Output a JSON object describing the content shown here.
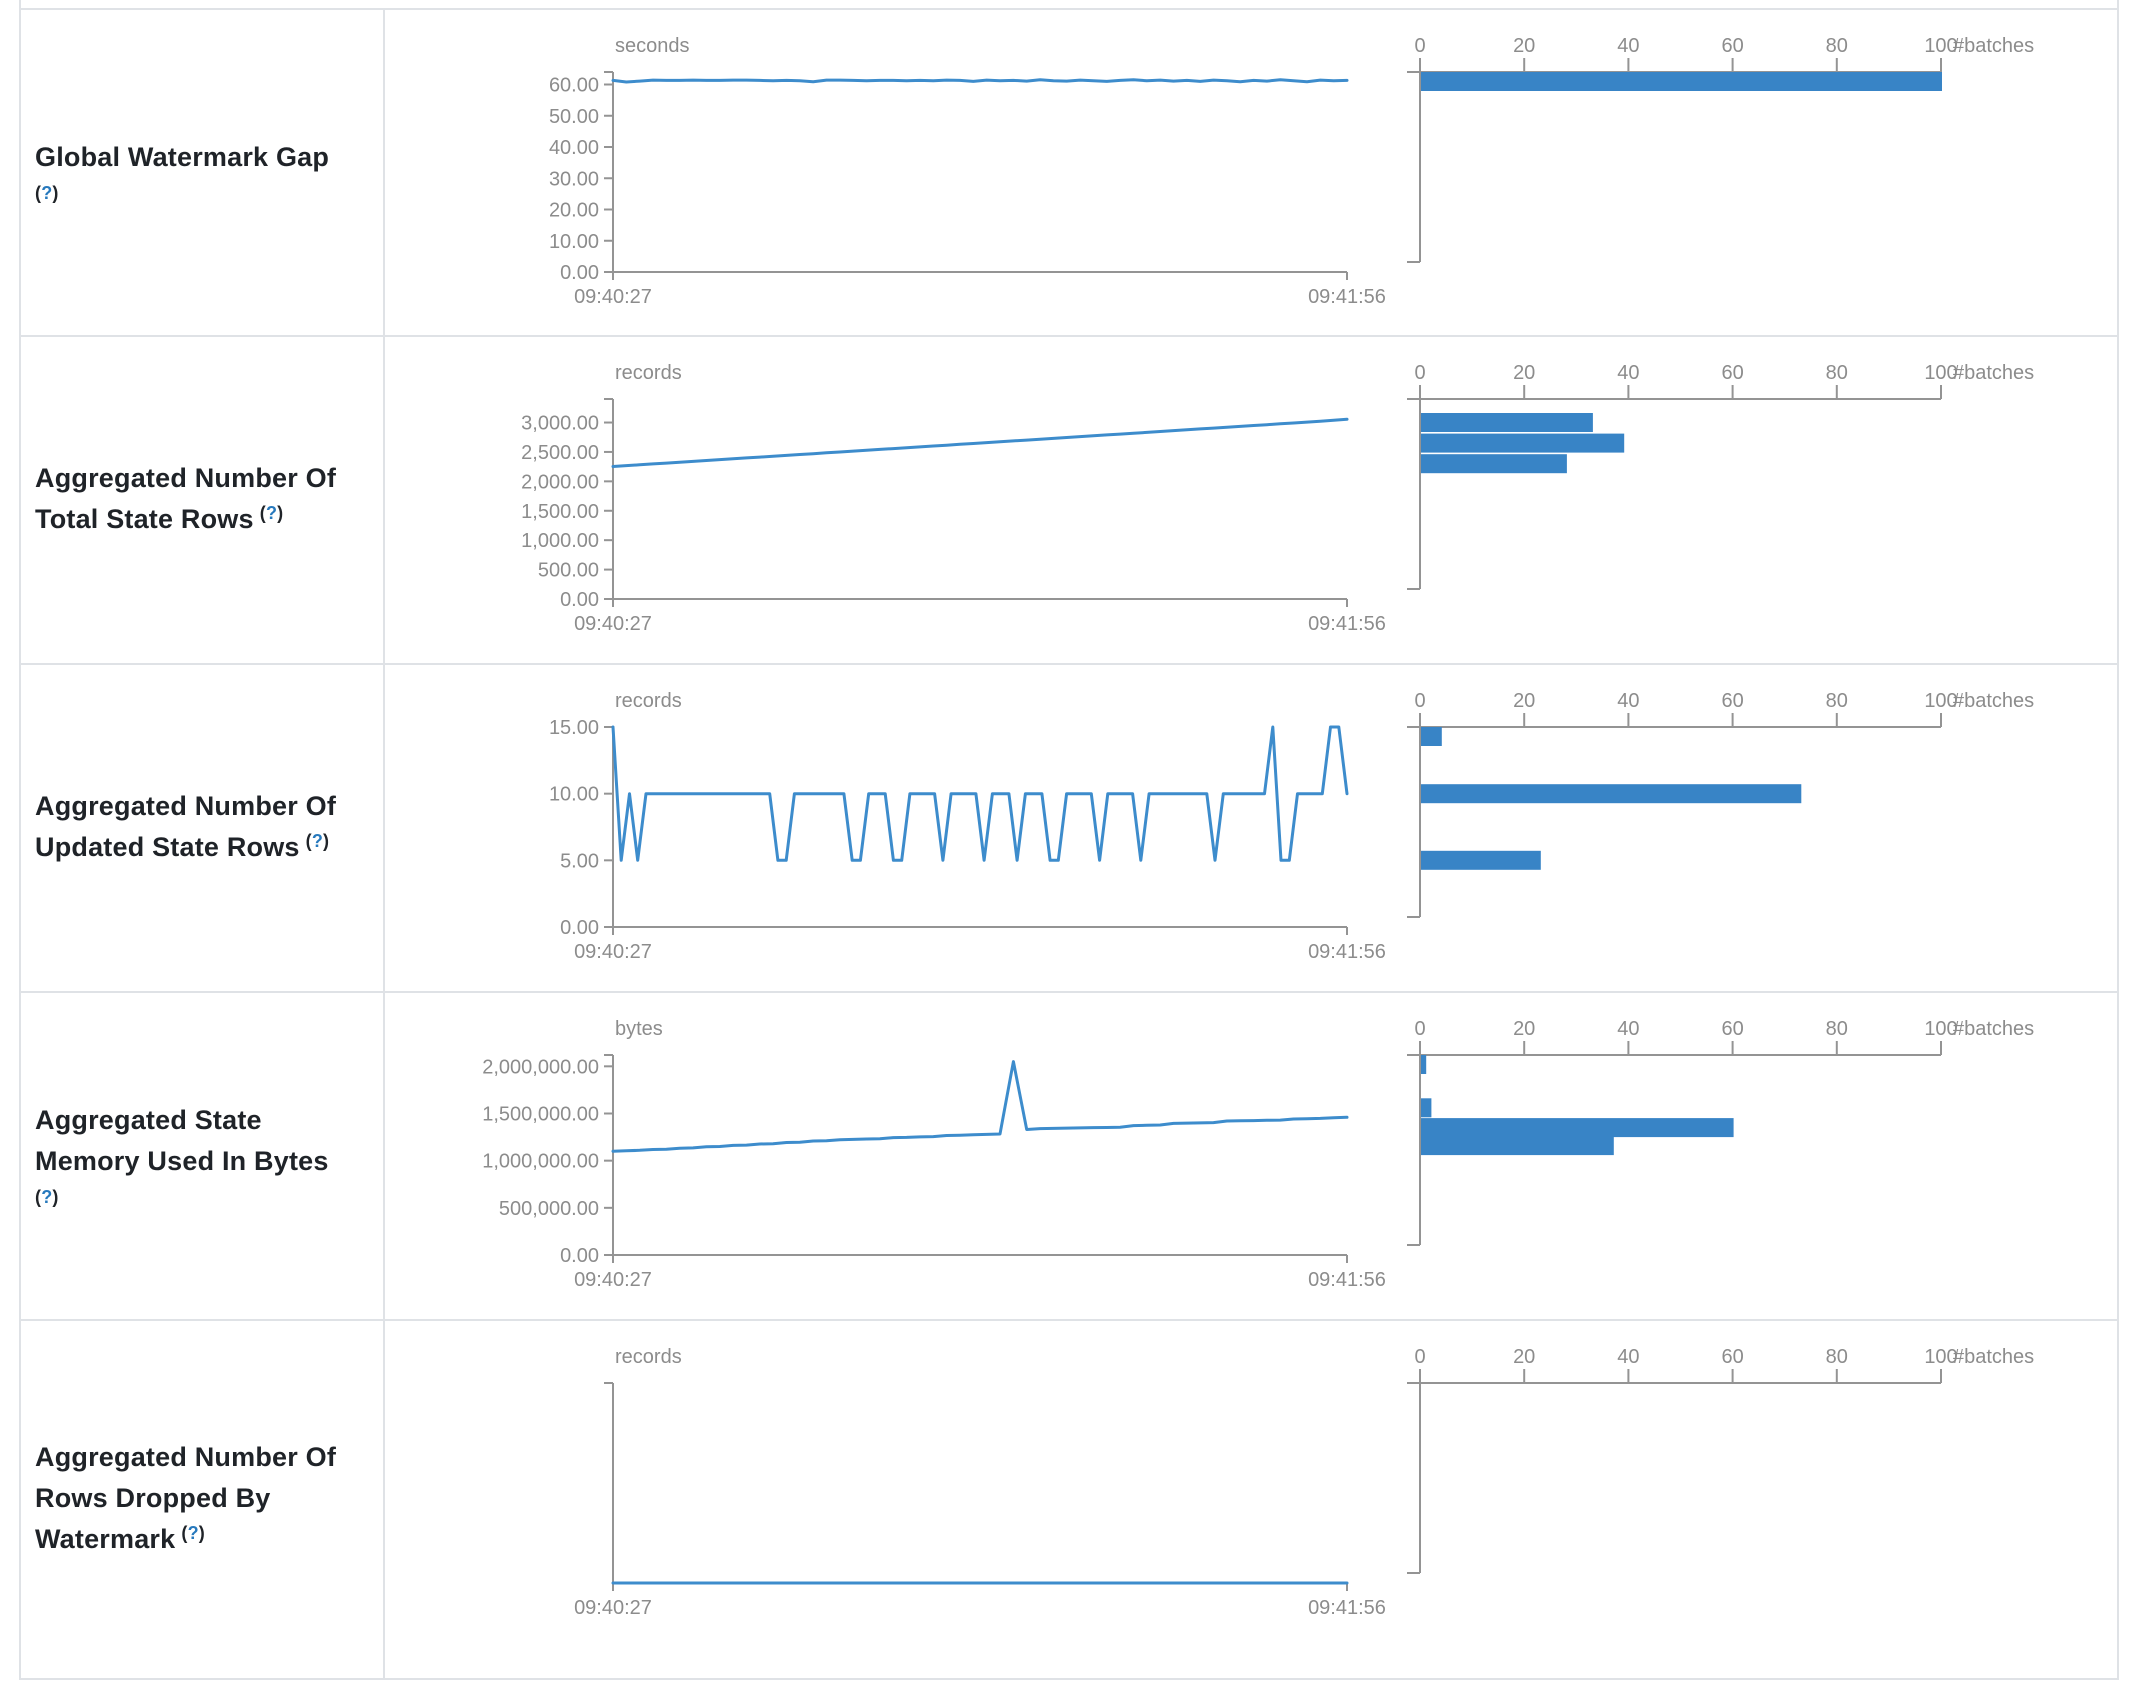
{
  "table": {
    "rows": [
      {
        "title_lines": [
          "Global Watermark Gap"
        ],
        "help": "(?)",
        "help_inline": false
      },
      {
        "title_lines": [
          "Aggregated Number Of",
          "Total State Rows"
        ],
        "help": "(?)",
        "help_inline": true
      },
      {
        "title_lines": [
          "Aggregated Number Of",
          "Updated State Rows"
        ],
        "help": "(?)",
        "help_inline": true
      },
      {
        "title_lines": [
          "Aggregated State",
          "Memory Used In Bytes"
        ],
        "help": "(?)",
        "help_inline": false
      },
      {
        "title_lines": [
          "Aggregated Number Of",
          "Rows Dropped By",
          "Watermark"
        ],
        "help": "(?)",
        "help_inline": true
      }
    ]
  },
  "histogram_axis": {
    "tick_values": [
      0,
      20,
      40,
      60,
      80,
      100
    ],
    "tick_labels": [
      "0",
      "20",
      "40",
      "60",
      "80",
      "100"
    ],
    "label": "#batches",
    "max": 100
  },
  "chart_data": [
    {
      "type": "line",
      "title": "Global Watermark Gap",
      "unit": "seconds",
      "x_start_label": "09:40:27",
      "x_end_label": "09:41:56",
      "ylim": [
        0,
        64
      ],
      "yticks": [
        {
          "value": 60,
          "label": "60.00"
        },
        {
          "value": 50,
          "label": "50.00"
        },
        {
          "value": 40,
          "label": "40.00"
        },
        {
          "value": 30,
          "label": "30.00"
        },
        {
          "value": 20,
          "label": "20.00"
        },
        {
          "value": 10,
          "label": "10.00"
        },
        {
          "value": 0,
          "label": "0.00"
        }
      ],
      "values": [
        61.3,
        60.8,
        61.1,
        61.4,
        61.3,
        61.3,
        61.4,
        61.3,
        61.3,
        61.4,
        61.4,
        61.3,
        61.2,
        61.3,
        61.2,
        60.9,
        61.4,
        61.4,
        61.3,
        61.2,
        61.3,
        61.3,
        61.2,
        61.3,
        61.2,
        61.4,
        61.3,
        61.0,
        61.4,
        61.2,
        61.3,
        61.1,
        61.5,
        61.2,
        61.1,
        61.4,
        61.2,
        61.0,
        61.3,
        61.5,
        61.2,
        61.4,
        61.1,
        61.3,
        61.0,
        61.4,
        61.2,
        60.9,
        61.3,
        61.1,
        61.5,
        61.2,
        60.9,
        61.4,
        61.2,
        61.3
      ],
      "histogram": {
        "type": "bar",
        "orientation": "horizontal",
        "bins": [
          {
            "value": 61,
            "count": 100
          }
        ]
      }
    },
    {
      "type": "line",
      "title": "Aggregated Number Of Total State Rows",
      "unit": "records",
      "x_start_label": "09:40:27",
      "x_end_label": "09:41:56",
      "ylim": [
        0,
        3400
      ],
      "yticks": [
        {
          "value": 3000,
          "label": "3,000.00"
        },
        {
          "value": 2500,
          "label": "2,500.00"
        },
        {
          "value": 2000,
          "label": "2,000.00"
        },
        {
          "value": 1500,
          "label": "1,500.00"
        },
        {
          "value": 1000,
          "label": "1,000.00"
        },
        {
          "value": 500,
          "label": "500.00"
        },
        {
          "value": 0,
          "label": "0.00"
        }
      ],
      "values": [
        2253,
        2267,
        2282,
        2296,
        2311,
        2325,
        2340,
        2354,
        2369,
        2383,
        2398,
        2412,
        2427,
        2441,
        2456,
        2470,
        2485,
        2499,
        2514,
        2528,
        2543,
        2557,
        2572,
        2586,
        2601,
        2615,
        2630,
        2644,
        2659,
        2673,
        2688,
        2702,
        2717,
        2731,
        2746,
        2760,
        2775,
        2789,
        2804,
        2818,
        2833,
        2847,
        2862,
        2876,
        2891,
        2905,
        2920,
        2934,
        2949,
        2963,
        2978,
        2992,
        3007,
        3021,
        3040,
        3055
      ],
      "histogram": {
        "type": "bar",
        "orientation": "horizontal",
        "bins": [
          {
            "value": 3000,
            "count": 33
          },
          {
            "value": 2650,
            "count": 39
          },
          {
            "value": 2300,
            "count": 28
          }
        ]
      }
    },
    {
      "type": "line",
      "title": "Aggregated Number Of Updated State Rows",
      "unit": "records",
      "x_start_label": "09:40:27",
      "x_end_label": "09:41:56",
      "ylim": [
        0,
        15
      ],
      "yticks": [
        {
          "value": 15,
          "label": "15.00"
        },
        {
          "value": 10,
          "label": "10.00"
        },
        {
          "value": 5,
          "label": "5.00"
        },
        {
          "value": 0,
          "label": "0.00"
        }
      ],
      "values": [
        15,
        5,
        10,
        5,
        10,
        10,
        10,
        10,
        10,
        10,
        10,
        10,
        10,
        10,
        10,
        10,
        10,
        10,
        10,
        10,
        5,
        5,
        10,
        10,
        10,
        10,
        10,
        10,
        10,
        5,
        5,
        10,
        10,
        10,
        5,
        5,
        10,
        10,
        10,
        10,
        5,
        10,
        10,
        10,
        10,
        5,
        10,
        10,
        10,
        5,
        10,
        10,
        10,
        5,
        5,
        10,
        10,
        10,
        10,
        5,
        10,
        10,
        10,
        10,
        5,
        10,
        10,
        10,
        10,
        10,
        10,
        10,
        10,
        5,
        10,
        10,
        10,
        10,
        10,
        10,
        15,
        5,
        5,
        10,
        10,
        10,
        10,
        15,
        15,
        10
      ],
      "histogram": {
        "type": "bar",
        "orientation": "horizontal",
        "bins": [
          {
            "value": 15,
            "count": 4
          },
          {
            "value": 10,
            "count": 73
          },
          {
            "value": 5,
            "count": 23
          }
        ]
      }
    },
    {
      "type": "line",
      "title": "Aggregated State Memory Used In Bytes",
      "unit": "bytes",
      "x_start_label": "09:40:27",
      "x_end_label": "09:41:56",
      "ylim": [
        0,
        2120000
      ],
      "yticks": [
        {
          "value": 2000000,
          "label": "2,000,000.00"
        },
        {
          "value": 1500000,
          "label": "1,500,000.00"
        },
        {
          "value": 1000000,
          "label": "1,000,000.00"
        },
        {
          "value": 500000,
          "label": "500,000.00"
        },
        {
          "value": 0,
          "label": "0.00"
        }
      ],
      "values": [
        1100000,
        1105000,
        1110000,
        1118000,
        1120000,
        1132000,
        1135000,
        1147000,
        1150000,
        1162000,
        1165000,
        1177000,
        1180000,
        1192000,
        1196000,
        1208000,
        1210000,
        1222000,
        1225000,
        1230000,
        1232000,
        1244000,
        1247000,
        1252000,
        1255000,
        1267000,
        1270000,
        1275000,
        1278000,
        1283000,
        2050000,
        1330000,
        1340000,
        1342000,
        1345000,
        1347000,
        1350000,
        1352000,
        1355000,
        1372000,
        1375000,
        1378000,
        1395000,
        1398000,
        1400000,
        1403000,
        1420000,
        1422000,
        1425000,
        1428000,
        1430000,
        1442000,
        1445000,
        1448000,
        1455000,
        1460000
      ],
      "histogram": {
        "type": "bar",
        "orientation": "horizontal",
        "bins": [
          {
            "value": 2050000,
            "count": 1
          },
          {
            "value": 1560000,
            "count": 2
          },
          {
            "value": 1350000,
            "count": 60
          },
          {
            "value": 1160000,
            "count": 37
          }
        ]
      }
    },
    {
      "type": "line",
      "title": "Aggregated Number Of Rows Dropped By Watermark",
      "unit": "records",
      "x_start_label": "09:40:27",
      "x_end_label": "09:41:56",
      "ylim": [
        0,
        1
      ],
      "yticks": [],
      "values": [
        0,
        0,
        0,
        0,
        0,
        0,
        0,
        0,
        0,
        0,
        0,
        0,
        0,
        0,
        0,
        0,
        0,
        0,
        0,
        0,
        0,
        0,
        0,
        0,
        0,
        0,
        0,
        0,
        0,
        0,
        0,
        0,
        0,
        0,
        0,
        0,
        0,
        0,
        0,
        0,
        0,
        0,
        0,
        0,
        0,
        0,
        0,
        0,
        0,
        0,
        0,
        0,
        0,
        0,
        0,
        0
      ],
      "histogram": {
        "type": "bar",
        "orientation": "horizontal",
        "bins": []
      }
    }
  ],
  "colors": {
    "line": "#3d8ccc",
    "bar": "#3884c6",
    "axis": "#949494",
    "muted_text": "#8c8c8c",
    "title_text": "#1f2328",
    "help_link": "#2779bd",
    "border": "#dfe2e6"
  }
}
